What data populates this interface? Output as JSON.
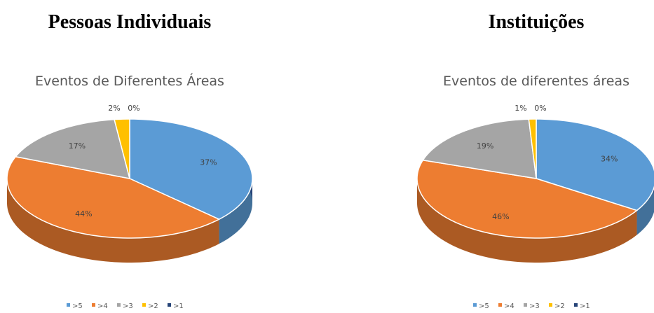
{
  "chart_data": [
    {
      "type": "pie",
      "title": "Pessoas Individuais",
      "subtitle": "Eventos de Diferentes Áreas",
      "categories": [
        ">5",
        ">4",
        ">3",
        ">2",
        ">1"
      ],
      "values": [
        37,
        44,
        17,
        2,
        0
      ],
      "value_labels": [
        "37%",
        "44%",
        "17%",
        "2%",
        "0%"
      ],
      "colors": [
        "#5b9bd5",
        "#ed7d31",
        "#a5a5a5",
        "#ffc000",
        "#264478"
      ],
      "legend": "bottom"
    },
    {
      "type": "pie",
      "title": "Instituições",
      "subtitle": "Eventos de diferentes áreas",
      "categories": [
        ">5",
        ">4",
        ">3",
        ">2",
        ">1"
      ],
      "values": [
        34,
        46,
        19,
        1,
        0
      ],
      "value_labels": [
        "34%",
        "46%",
        "19%",
        "1%",
        "0%"
      ],
      "colors": [
        "#5b9bd5",
        "#ed7d31",
        "#a5a5a5",
        "#ffc000",
        "#264478"
      ],
      "legend": "bottom"
    }
  ]
}
